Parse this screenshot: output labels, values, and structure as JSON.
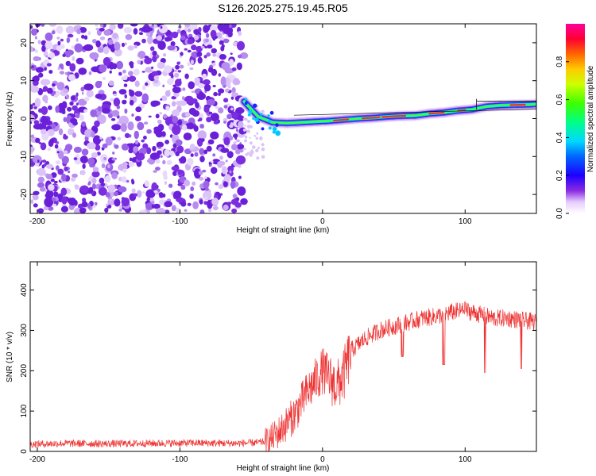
{
  "figure": {
    "title": "S126.2025.275.19.45.R05"
  },
  "chart_data": [
    {
      "type": "heatmap",
      "title": "",
      "xlabel": "Height of straight line (km)",
      "ylabel": "Frequency (Hz)",
      "xlim": [
        -205,
        150
      ],
      "ylim": [
        -25,
        25
      ],
      "xticks": [
        -200,
        -100,
        0,
        100
      ],
      "yticks": [
        -20,
        -10,
        0,
        10,
        20
      ],
      "noise_region_end_km": -55,
      "signal_track": {
        "x": [
          -55,
          -45,
          -35,
          -25,
          -15,
          -5,
          5,
          15,
          25,
          35,
          45,
          55,
          65,
          75,
          85,
          95,
          105,
          115,
          125,
          135,
          145,
          150
        ],
        "frequency": [
          4.5,
          0.5,
          -1.0,
          -1.2,
          -1.0,
          -0.8,
          -0.6,
          -0.3,
          0.0,
          0.2,
          0.5,
          0.7,
          0.8,
          1.3,
          1.6,
          2.1,
          2.4,
          3.2,
          3.5,
          3.6,
          3.7,
          3.8
        ]
      },
      "colorbar": {
        "label": "Normalized spectral amplitude",
        "range": [
          0.0,
          1.0
        ],
        "ticks": [
          0.0,
          0.2,
          0.4,
          0.6,
          0.8
        ]
      }
    },
    {
      "type": "line",
      "title": "",
      "xlabel": "Height of straight line (km)",
      "ylabel": "SNR (10 * v/v)",
      "xlim": [
        -205,
        150
      ],
      "ylim": [
        0,
        470
      ],
      "xticks": [
        -200,
        -100,
        0,
        100
      ],
      "yticks": [
        0,
        100,
        200,
        300,
        400
      ],
      "series": [
        {
          "name": "SNR",
          "color": "#ee3333",
          "x": [
            -205,
            -180,
            -150,
            -120,
            -90,
            -60,
            -45,
            -38,
            -30,
            -20,
            -10,
            0,
            10,
            15,
            20,
            30,
            40,
            50,
            60,
            70,
            80,
            90,
            100,
            110,
            120,
            130,
            140,
            150
          ],
          "y": [
            18,
            20,
            19,
            20,
            21,
            20,
            22,
            25,
            50,
            90,
            150,
            200,
            160,
            190,
            250,
            280,
            300,
            310,
            320,
            330,
            335,
            345,
            350,
            340,
            330,
            330,
            325,
            320
          ]
        }
      ]
    }
  ]
}
